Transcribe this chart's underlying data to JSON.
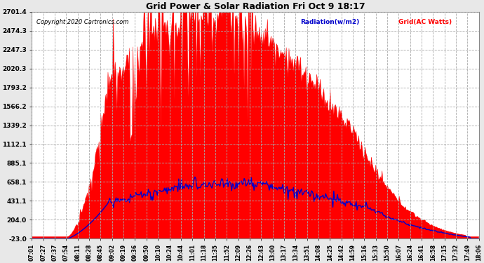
{
  "title": "Grid Power & Solar Radiation Fri Oct 9 18:17",
  "copyright": "Copyright 2020 Cartronics.com",
  "legend_radiation": "Radiation(w/m2)",
  "legend_grid": "Grid(AC Watts)",
  "yticks": [
    2701.4,
    2474.3,
    2247.3,
    2020.3,
    1793.2,
    1566.2,
    1339.2,
    1112.1,
    885.1,
    658.1,
    431.1,
    204.0,
    -23.0
  ],
  "ymin": -23.0,
  "ymax": 2701.4,
  "background_color": "#e8e8e8",
  "plot_bg_color": "#ffffff",
  "fill_color": "#ff0000",
  "line_color_blue": "#0000cc",
  "line_color_red": "#ff0000",
  "x_labels": [
    "07:01",
    "07:27",
    "07:37",
    "07:54",
    "08:11",
    "08:28",
    "08:45",
    "09:02",
    "09:19",
    "09:36",
    "09:50",
    "10:10",
    "10:24",
    "10:44",
    "11:01",
    "11:18",
    "11:35",
    "11:52",
    "12:09",
    "12:26",
    "12:43",
    "13:00",
    "13:17",
    "13:34",
    "13:51",
    "14:08",
    "14:25",
    "14:42",
    "14:59",
    "15:16",
    "15:33",
    "15:50",
    "16:07",
    "16:24",
    "16:41",
    "16:58",
    "17:15",
    "17:32",
    "17:49",
    "18:06"
  ]
}
